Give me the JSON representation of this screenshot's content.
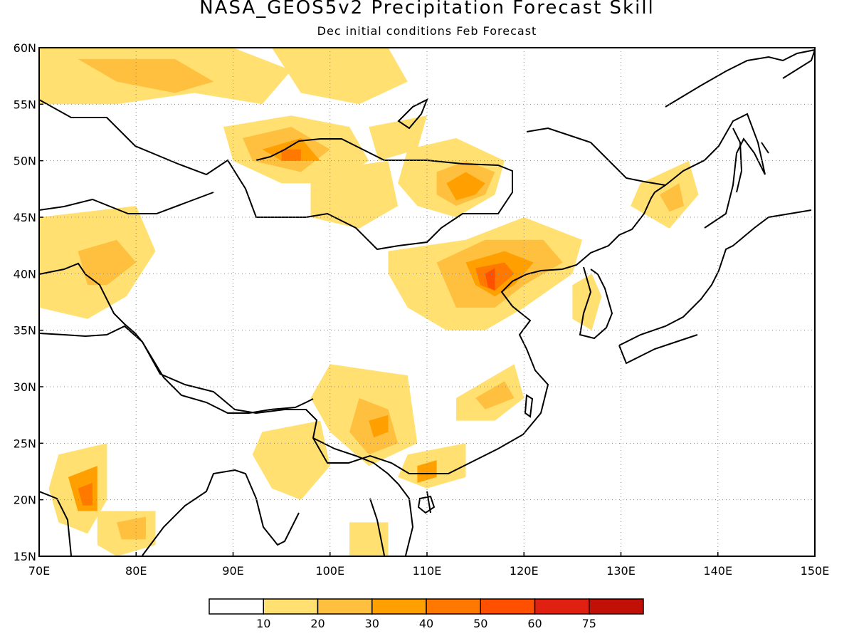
{
  "title": "NASA_GEOS5v2 Precipitation Forecast Skill",
  "subtitle": "Dec initial conditions  Feb Forecast",
  "map": {
    "lon_range": [
      70,
      150
    ],
    "lat_range": [
      15,
      60
    ],
    "lon_ticks": [
      {
        "lon": 70,
        "label": "70E"
      },
      {
        "lon": 80,
        "label": "80E"
      },
      {
        "lon": 90,
        "label": "90E"
      },
      {
        "lon": 100,
        "label": "100E"
      },
      {
        "lon": 110,
        "label": "110E"
      },
      {
        "lon": 120,
        "label": "120E"
      },
      {
        "lon": 130,
        "label": "130E"
      },
      {
        "lon": 140,
        "label": "140E"
      },
      {
        "lon": 150,
        "label": "150E"
      }
    ],
    "lat_ticks": [
      {
        "lat": 60,
        "label": "60N"
      },
      {
        "lat": 55,
        "label": "55N"
      },
      {
        "lat": 50,
        "label": "50N"
      },
      {
        "lat": 45,
        "label": "45N"
      },
      {
        "lat": 40,
        "label": "40N"
      },
      {
        "lat": 35,
        "label": "35N"
      },
      {
        "lat": 30,
        "label": "30N"
      },
      {
        "lat": 25,
        "label": "25N"
      },
      {
        "lat": 20,
        "label": "20N"
      },
      {
        "lat": 15,
        "label": "15N"
      }
    ],
    "grid": true,
    "skill_regions": [
      {
        "level": 1,
        "pts": [
          [
            70,
            60
          ],
          [
            90,
            60
          ],
          [
            96,
            58
          ],
          [
            93,
            55
          ],
          [
            86,
            56
          ],
          [
            78,
            55
          ],
          [
            70,
            55
          ]
        ]
      },
      {
        "level": 2,
        "pts": [
          [
            74,
            59
          ],
          [
            84,
            59
          ],
          [
            88,
            57
          ],
          [
            84,
            56
          ],
          [
            78,
            57
          ]
        ]
      },
      {
        "level": 1,
        "pts": [
          [
            94,
            60
          ],
          [
            106,
            60
          ],
          [
            108,
            57
          ],
          [
            103,
            55
          ],
          [
            97,
            56
          ]
        ]
      },
      {
        "level": 1,
        "pts": [
          [
            89,
            53
          ],
          [
            96,
            54
          ],
          [
            102,
            53
          ],
          [
            104,
            50
          ],
          [
            100,
            48
          ],
          [
            95,
            48
          ],
          [
            90,
            50
          ]
        ]
      },
      {
        "level": 2,
        "pts": [
          [
            91,
            52
          ],
          [
            96,
            53
          ],
          [
            100,
            51
          ],
          [
            97,
            49
          ],
          [
            92,
            50
          ]
        ]
      },
      {
        "level": 3,
        "pts": [
          [
            93,
            51
          ],
          [
            97,
            52
          ],
          [
            99,
            50
          ],
          [
            95,
            50
          ]
        ]
      },
      {
        "level": 4,
        "pts": [
          [
            95,
            51
          ],
          [
            97,
            51
          ],
          [
            97,
            50
          ],
          [
            95,
            50
          ]
        ]
      },
      {
        "level": 1,
        "pts": [
          [
            104,
            53
          ],
          [
            110,
            54
          ],
          [
            109,
            51
          ],
          [
            105,
            50
          ]
        ]
      },
      {
        "level": 1,
        "pts": [
          [
            108,
            51
          ],
          [
            113,
            52
          ],
          [
            118,
            50
          ],
          [
            117,
            47
          ],
          [
            113,
            45
          ],
          [
            109,
            46
          ],
          [
            107,
            48
          ]
        ]
      },
      {
        "level": 2,
        "pts": [
          [
            111,
            49
          ],
          [
            114,
            50
          ],
          [
            117,
            49
          ],
          [
            116,
            47
          ],
          [
            113,
            46
          ],
          [
            111,
            47
          ]
        ]
      },
      {
        "level": 3,
        "pts": [
          [
            112,
            48
          ],
          [
            114,
            49
          ],
          [
            116,
            48
          ],
          [
            115,
            47
          ],
          [
            113,
            46.5
          ]
        ]
      },
      {
        "level": 1,
        "pts": [
          [
            98,
            49
          ],
          [
            106,
            50
          ],
          [
            107,
            46
          ],
          [
            103,
            44
          ],
          [
            98,
            45
          ]
        ]
      },
      {
        "level": 1,
        "pts": [
          [
            106,
            42
          ],
          [
            114,
            43
          ],
          [
            120,
            45
          ],
          [
            126,
            43
          ],
          [
            125,
            40
          ],
          [
            120,
            37
          ],
          [
            116,
            35
          ],
          [
            112,
            35
          ],
          [
            108,
            37
          ],
          [
            106,
            40
          ]
        ]
      },
      {
        "level": 2,
        "pts": [
          [
            111,
            41
          ],
          [
            116,
            43
          ],
          [
            122,
            43
          ],
          [
            124,
            41
          ],
          [
            120,
            39
          ],
          [
            117,
            37
          ],
          [
            113,
            37
          ]
        ]
      },
      {
        "level": 3,
        "pts": [
          [
            114,
            41
          ],
          [
            118,
            42
          ],
          [
            121,
            41
          ],
          [
            119,
            39
          ],
          [
            117,
            38
          ],
          [
            115,
            39
          ]
        ]
      },
      {
        "level": 4,
        "pts": [
          [
            115,
            40.5
          ],
          [
            118,
            41
          ],
          [
            119,
            40
          ],
          [
            117,
            38.5
          ],
          [
            115.5,
            39
          ]
        ]
      },
      {
        "level": 5,
        "pts": [
          [
            116,
            40
          ],
          [
            117,
            40.5
          ],
          [
            117,
            38.5
          ],
          [
            116.3,
            38.8
          ]
        ]
      },
      {
        "level": 1,
        "pts": [
          [
            132,
            48
          ],
          [
            137,
            50
          ],
          [
            138,
            47
          ],
          [
            135,
            44
          ],
          [
            131,
            46
          ]
        ]
      },
      {
        "level": 2,
        "pts": [
          [
            134,
            47
          ],
          [
            136,
            48
          ],
          [
            136.5,
            46
          ],
          [
            135,
            45.5
          ]
        ]
      },
      {
        "level": 1,
        "pts": [
          [
            125,
            39
          ],
          [
            127,
            40
          ],
          [
            128,
            38
          ],
          [
            127,
            35
          ],
          [
            125,
            36
          ]
        ]
      },
      {
        "level": 1,
        "pts": [
          [
            70,
            45
          ],
          [
            80,
            46
          ],
          [
            82,
            42
          ],
          [
            79,
            38
          ],
          [
            75,
            36
          ],
          [
            70,
            37
          ]
        ]
      },
      {
        "level": 2,
        "pts": [
          [
            74,
            42
          ],
          [
            78,
            43
          ],
          [
            80,
            41
          ],
          [
            77,
            39
          ],
          [
            75,
            39
          ]
        ]
      },
      {
        "level": 1,
        "pts": [
          [
            100,
            32
          ],
          [
            108,
            31
          ],
          [
            109,
            25
          ],
          [
            104,
            23
          ],
          [
            100,
            26
          ],
          [
            98,
            29
          ]
        ]
      },
      {
        "level": 2,
        "pts": [
          [
            103,
            29
          ],
          [
            106,
            28
          ],
          [
            107,
            25
          ],
          [
            104,
            24
          ],
          [
            102,
            26
          ]
        ]
      },
      {
        "level": 3,
        "pts": [
          [
            104,
            27
          ],
          [
            106,
            27.5
          ],
          [
            106,
            26
          ],
          [
            104.5,
            25.5
          ]
        ]
      },
      {
        "level": 1,
        "pts": [
          [
            108,
            24
          ],
          [
            114,
            25
          ],
          [
            114,
            22
          ],
          [
            110,
            21
          ],
          [
            107,
            22
          ]
        ]
      },
      {
        "level": 3,
        "pts": [
          [
            109,
            23
          ],
          [
            111,
            23.5
          ],
          [
            111,
            22
          ],
          [
            109,
            21.5
          ]
        ]
      },
      {
        "level": 1,
        "pts": [
          [
            113,
            29
          ],
          [
            119,
            32
          ],
          [
            120,
            29
          ],
          [
            117,
            27
          ],
          [
            113,
            27
          ]
        ]
      },
      {
        "level": 2,
        "pts": [
          [
            115,
            29
          ],
          [
            118,
            30.5
          ],
          [
            119,
            29
          ],
          [
            116,
            28
          ]
        ]
      },
      {
        "level": 1,
        "pts": [
          [
            72,
            24
          ],
          [
            77,
            25
          ],
          [
            77,
            20
          ],
          [
            75,
            17
          ],
          [
            72,
            18
          ],
          [
            71,
            21
          ]
        ]
      },
      {
        "level": 3,
        "pts": [
          [
            73,
            22
          ],
          [
            76,
            23
          ],
          [
            76,
            19
          ],
          [
            74,
            19
          ]
        ]
      },
      {
        "level": 4,
        "pts": [
          [
            74,
            21
          ],
          [
            75.5,
            21.5
          ],
          [
            75.5,
            19.5
          ],
          [
            74.5,
            19.5
          ]
        ]
      },
      {
        "level": 1,
        "pts": [
          [
            76,
            19
          ],
          [
            82,
            19
          ],
          [
            82,
            16
          ],
          [
            78,
            15
          ],
          [
            76,
            16
          ]
        ]
      },
      {
        "level": 2,
        "pts": [
          [
            78,
            18
          ],
          [
            81,
            18.5
          ],
          [
            81,
            16.5
          ],
          [
            78.5,
            16.5
          ]
        ]
      },
      {
        "level": 1,
        "pts": [
          [
            102,
            18
          ],
          [
            106,
            18
          ],
          [
            106,
            15
          ],
          [
            102,
            15
          ]
        ]
      },
      {
        "level": 1,
        "pts": [
          [
            93,
            26
          ],
          [
            99,
            27
          ],
          [
            100,
            23
          ],
          [
            97,
            20
          ],
          [
            94,
            21
          ],
          [
            92,
            24
          ]
        ]
      }
    ],
    "palette": [
      "#ffffff",
      "#ffe070",
      "#ffc040",
      "#ffa000",
      "#ff7800",
      "#ff5000",
      "#e02010",
      "#c01008",
      "#900000"
    ]
  },
  "colorbar": {
    "colors": [
      "#ffffff",
      "#ffe070",
      "#ffc040",
      "#ffa000",
      "#ff7800",
      "#ff5000",
      "#e02010",
      "#c01008"
    ],
    "labels": [
      "10",
      "20",
      "30",
      "40",
      "50",
      "60",
      "75"
    ]
  }
}
